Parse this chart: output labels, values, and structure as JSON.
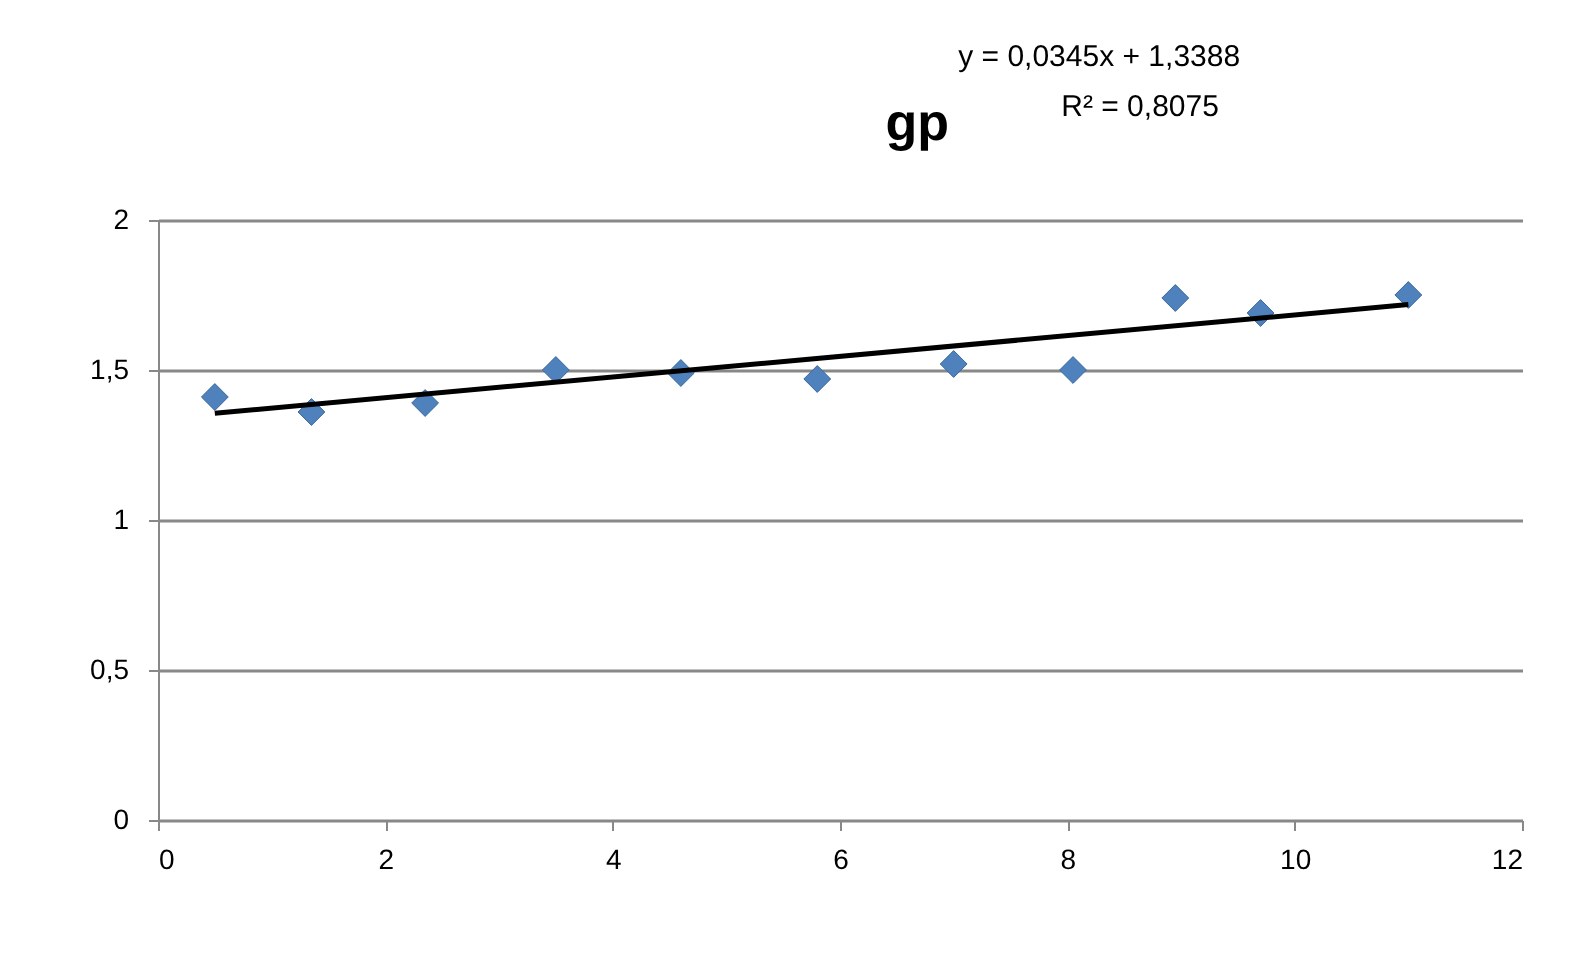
{
  "chart_data": {
    "type": "scatter",
    "title": "gp",
    "annotations": [
      "y = 0,0345x + 1,3388",
      "R² = 0,8075"
    ],
    "xlim": [
      0,
      12
    ],
    "ylim": [
      0,
      2
    ],
    "xticks": [
      0,
      2,
      4,
      6,
      8,
      10,
      12
    ],
    "yticks": [
      0,
      {
        "value": 0.5,
        "label": "0,5"
      },
      1,
      {
        "value": 1.5,
        "label": "1,5"
      },
      2
    ],
    "grid": "y",
    "series": [
      {
        "color": "#4f81bd",
        "marker": "diamond",
        "x": [
          0.5,
          1.35,
          2.35,
          3.5,
          4.6,
          5.8,
          7.0,
          8.05,
          8.95,
          9.7,
          11.0
        ],
        "values": [
          1.41,
          1.36,
          1.39,
          1.5,
          1.49,
          1.47,
          1.52,
          1.5,
          1.74,
          1.69,
          1.75
        ]
      },
      {
        "type": "line",
        "color": "#000000",
        "line_style": "solid",
        "x": [
          0.5,
          11.0
        ],
        "values": [
          1.356,
          1.718
        ]
      }
    ]
  }
}
